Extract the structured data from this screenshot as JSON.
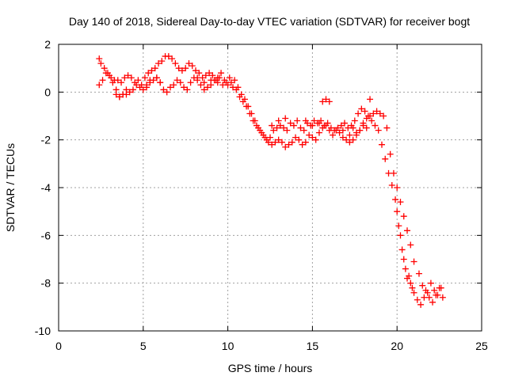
{
  "chart_data": {
    "type": "scatter",
    "title": "Day 140 of 2018, Sidereal Day-to-day VTEC variation (SDTVAR) for receiver bogt",
    "xlabel": "GPS time / hours",
    "ylabel": "SDTVAR / TECUs",
    "xlim": [
      0,
      25
    ],
    "ylim": [
      -10,
      2
    ],
    "xticks": [
      "0",
      "5",
      "10",
      "15",
      "20",
      "25"
    ],
    "yticks": [
      "2",
      "0",
      "-2",
      "-4",
      "-6",
      "-8",
      "-10"
    ],
    "grid": true,
    "marker": "plus",
    "color": "#ff0000",
    "series": [
      {
        "name": "SDTVAR",
        "x": [
          2.4,
          2.5,
          2.7,
          2.9,
          3.1,
          3.3,
          3.5,
          3.7,
          3.9,
          4.1,
          4.3,
          4.5,
          4.7,
          4.9,
          5.1,
          5.3,
          5.5,
          5.7,
          5.9,
          6.1,
          6.3,
          6.5,
          6.7,
          6.9,
          7.1,
          7.3,
          7.5,
          7.7,
          7.9,
          8.1,
          8.3,
          8.5,
          8.7,
          8.9,
          9.1,
          9.3,
          9.5,
          9.7,
          9.9,
          10.1,
          10.3,
          10.5,
          10.7,
          10.9,
          11.1,
          11.3,
          11.5,
          11.7,
          11.9,
          12.1,
          12.3,
          12.5,
          12.7,
          12.9,
          13.1,
          13.3,
          13.5,
          13.7,
          13.9,
          14.1,
          14.3,
          14.5,
          14.7,
          14.9,
          15.1,
          15.3,
          15.5,
          15.7,
          15.9,
          16.1,
          16.3,
          16.5,
          16.7,
          16.9,
          17.1,
          17.3,
          17.5,
          17.7,
          17.9,
          18.1,
          18.3,
          18.5,
          18.7,
          18.9,
          19.1,
          19.3,
          19.5,
          19.7,
          19.9,
          20.0,
          20.1,
          20.2,
          20.3,
          20.4,
          20.5,
          20.6,
          20.7,
          20.8,
          20.9,
          21.0,
          21.2,
          21.4,
          21.6,
          21.8,
          22.0,
          22.2,
          22.4,
          22.6,
          2.4,
          2.6,
          2.8,
          3.0,
          3.2,
          3.4,
          3.6,
          3.8,
          4.0,
          4.2,
          4.4,
          4.6,
          4.8,
          5.0,
          5.2,
          5.4,
          5.6,
          5.8,
          6.0,
          6.2,
          6.4,
          6.6,
          6.8,
          7.0,
          7.2,
          7.4,
          7.6,
          7.8,
          8.0,
          8.2,
          8.4,
          8.6,
          8.8,
          9.0,
          9.2,
          9.4,
          9.6,
          9.8,
          10.0,
          10.2,
          10.4,
          10.6,
          10.8,
          11.0,
          11.2,
          11.4,
          11.6,
          11.8,
          12.0,
          12.2,
          12.4,
          12.6,
          12.8,
          13.0,
          13.2,
          13.4,
          13.6,
          13.8,
          14.0,
          14.2,
          14.4,
          14.6,
          14.8,
          15.0,
          15.2,
          15.4,
          15.6,
          15.8,
          16.0,
          16.2,
          16.4,
          16.6,
          16.8,
          17.0,
          17.2,
          17.4,
          17.6,
          17.8,
          18.0,
          18.2,
          18.4,
          18.6,
          18.8,
          19.0,
          19.2,
          19.4,
          19.6,
          19.8,
          20.0,
          20.2,
          20.4,
          20.6,
          20.8,
          21.0,
          21.3,
          21.5,
          21.7,
          21.9,
          22.1,
          22.3,
          22.5,
          22.7,
          3.4,
          3.6,
          3.8,
          4.0,
          5.2,
          5.4,
          5.8,
          6.0,
          8.2,
          8.6,
          9.0,
          9.4,
          12.6,
          13.0,
          13.4,
          14.6,
          15.0,
          15.4,
          15.6,
          15.8,
          16.0,
          16.8,
          17.2,
          17.4,
          17.6,
          17.8,
          18.0,
          18.2,
          18.4
        ],
        "y": [
          1.4,
          1.2,
          1.0,
          0.8,
          0.6,
          0.5,
          0.5,
          0.4,
          0.6,
          0.7,
          0.6,
          0.4,
          0.5,
          0.3,
          0.6,
          0.8,
          0.9,
          1.0,
          1.2,
          1.3,
          1.5,
          1.5,
          1.4,
          1.2,
          1.0,
          0.9,
          1.0,
          1.2,
          1.1,
          0.9,
          0.8,
          0.6,
          0.7,
          0.8,
          0.7,
          0.5,
          0.6,
          0.3,
          0.4,
          0.6,
          0.2,
          0.1,
          -0.2,
          -0.4,
          -0.6,
          -0.9,
          -1.2,
          -1.4,
          -1.6,
          -1.8,
          -2.0,
          -1.9,
          -1.6,
          -1.5,
          -1.4,
          -1.5,
          -1.6,
          -1.3,
          -1.4,
          -1.2,
          -1.5,
          -1.6,
          -1.3,
          -1.4,
          -1.2,
          -1.3,
          -1.2,
          -1.4,
          -1.3,
          -1.5,
          -1.6,
          -1.5,
          -1.4,
          -1.3,
          -1.5,
          -1.4,
          -1.2,
          -0.9,
          -0.7,
          -0.8,
          -1.0,
          -1.2,
          -1.4,
          -1.6,
          -2.2,
          -2.8,
          -3.4,
          -3.9,
          -4.5,
          -5.0,
          -5.6,
          -6.0,
          -6.6,
          -7.0,
          -7.4,
          -7.8,
          -7.7,
          -8.0,
          -8.2,
          -8.4,
          -8.7,
          -8.9,
          -8.6,
          -8.4,
          -8.0,
          -8.3,
          -8.5,
          -8.2,
          0.3,
          0.5,
          0.8,
          0.7,
          0.4,
          0.1,
          -0.2,
          -0.1,
          -0.1,
          0.0,
          0.1,
          0.3,
          0.2,
          0.1,
          0.3,
          0.4,
          0.5,
          0.6,
          0.4,
          0.1,
          0.0,
          0.2,
          0.3,
          0.5,
          0.4,
          0.2,
          0.1,
          0.4,
          0.6,
          0.5,
          0.3,
          0.1,
          0.2,
          0.3,
          0.5,
          0.6,
          0.8,
          0.5,
          0.3,
          0.4,
          0.5,
          0.2,
          -0.1,
          -0.3,
          -0.6,
          -0.9,
          -1.2,
          -1.5,
          -1.7,
          -1.9,
          -2.1,
          -2.2,
          -2.1,
          -2.0,
          -2.1,
          -2.3,
          -2.2,
          -2.1,
          -1.9,
          -2.0,
          -2.2,
          -2.1,
          -1.8,
          -1.9,
          -2.0,
          -1.7,
          -1.5,
          -1.4,
          -1.6,
          -1.8,
          -1.6,
          -1.7,
          -1.9,
          -2.0,
          -2.1,
          -2.0,
          -1.8,
          -1.6,
          -1.3,
          -1.1,
          -1.0,
          -0.9,
          -0.8,
          -0.9,
          -1.0,
          -1.5,
          -2.6,
          -3.4,
          -4.0,
          -4.6,
          -5.2,
          -5.8,
          -6.4,
          -7.1,
          -7.6,
          -8.1,
          -8.3,
          -8.6,
          -8.8,
          -8.5,
          -8.2,
          -8.6,
          -0.1,
          -0.2,
          -0.1,
          0.1,
          0.2,
          0.5,
          0.6,
          0.4,
          0.6,
          0.4,
          0.5,
          0.4,
          -1.4,
          -1.2,
          -1.1,
          -1.2,
          -1.4,
          -1.3,
          -0.4,
          -0.3,
          -0.4,
          -1.6,
          -1.8,
          -1.5,
          -1.7,
          -1.6,
          -1.4,
          -1.5,
          -0.3
        ]
      }
    ]
  }
}
